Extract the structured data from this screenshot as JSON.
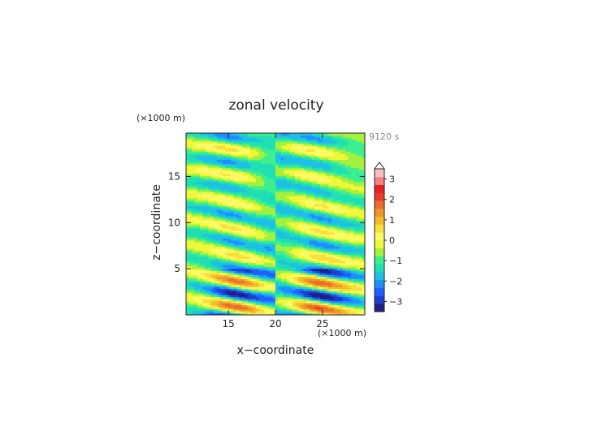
{
  "chart_data": {
    "type": "heatmap",
    "title": "zonal velocity",
    "xlabel": "x−coordinate",
    "ylabel": "z−coordinate",
    "x_unit": "(×1000 m)",
    "z_unit": "(×1000 m)",
    "time_label": "9120 s",
    "xlim": [
      10.5,
      29.5
    ],
    "ylim": [
      0,
      19.7
    ],
    "x_ticks": [
      15,
      20,
      25
    ],
    "y_ticks": [
      5,
      10,
      15
    ],
    "x_tick_labels": [
      "15",
      "20",
      "25"
    ],
    "y_tick_labels": [
      "5",
      "10",
      "15"
    ],
    "colorbar": {
      "min": -3.5,
      "max": 3.5,
      "step": 0.5,
      "tick_values": [
        3,
        2,
        1,
        0,
        -1,
        -2,
        -3
      ],
      "tick_labels": [
        "3",
        "2",
        "1",
        "0",
        "−1",
        "−2",
        "−3"
      ],
      "colors": [
        "#1f1f87",
        "#1f3fc8",
        "#1f5fff",
        "#1f8fff",
        "#1fbfe6",
        "#1fdfb3",
        "#3fef8f",
        "#a5f03c",
        "#eef73a",
        "#fafa69",
        "#f8df3a",
        "#f4bb2c",
        "#f0962a",
        "#ec6d2c",
        "#ea3a2c",
        "#e81f1f",
        "#ef8383",
        "#f9bebe"
      ]
    },
    "grid": false,
    "legend": "right"
  }
}
